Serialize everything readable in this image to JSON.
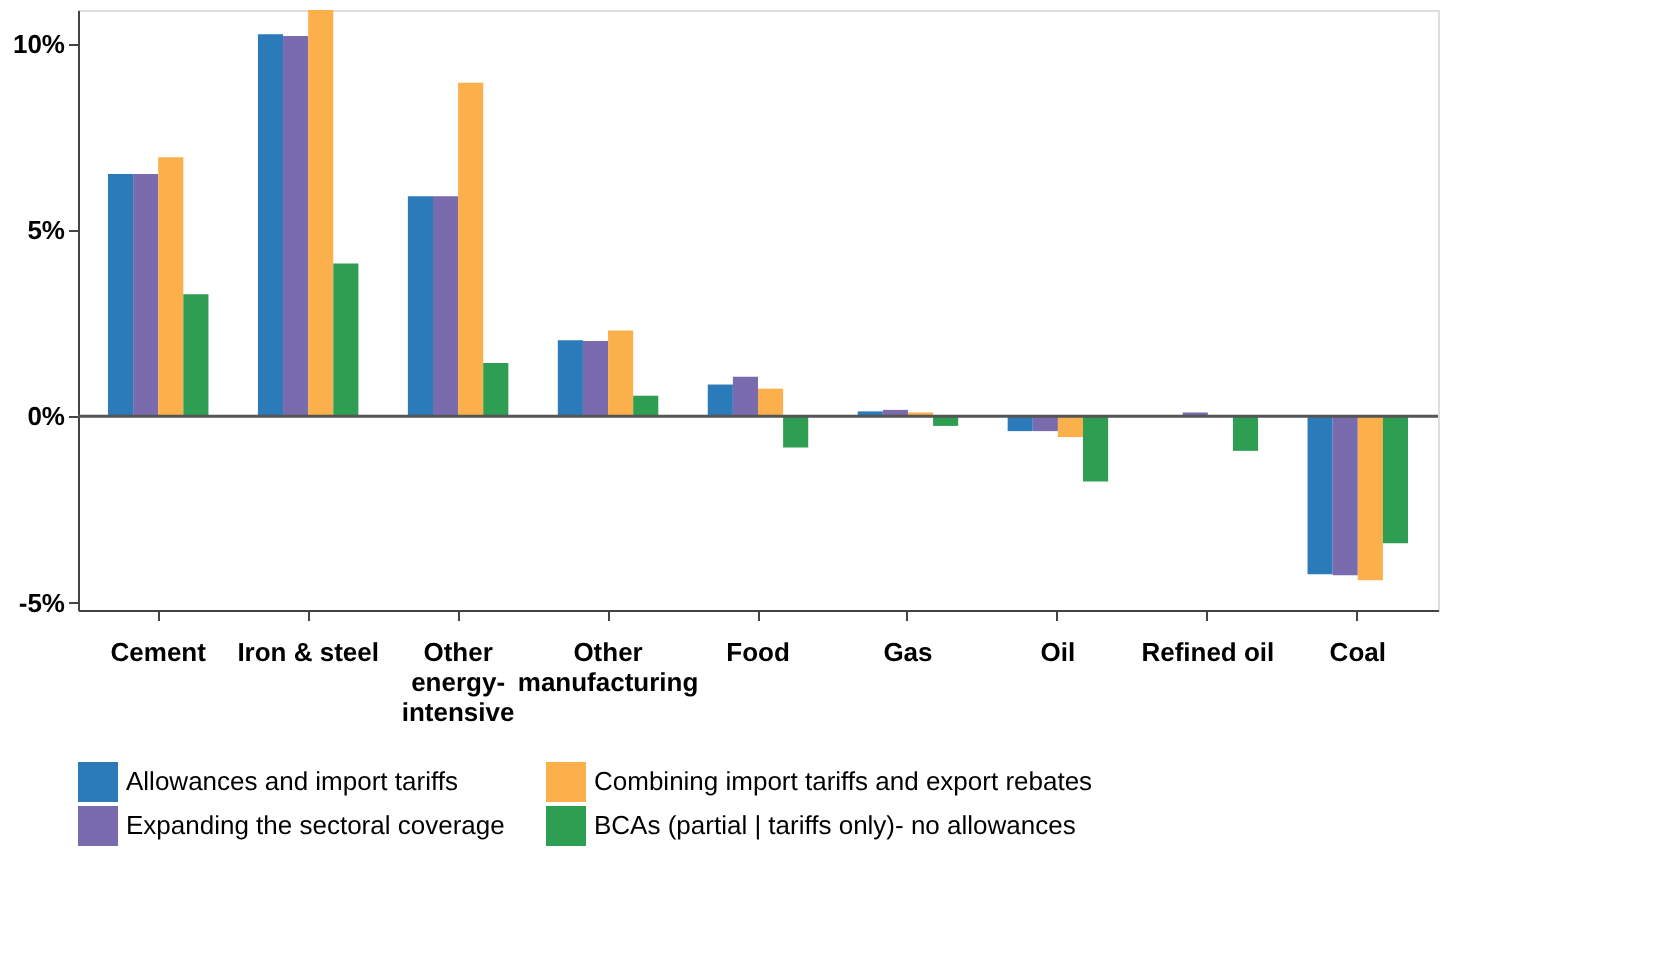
{
  "chart_data": {
    "type": "bar",
    "categories": [
      "Cement",
      "Iron & steel",
      "Other\nenergy-\nintensive",
      "Other\nmanufacturing",
      "Food",
      "Gas",
      "Oil",
      "Refined oil",
      "Coal"
    ],
    "series": [
      {
        "name": "Allowances and import tariffs",
        "color": "#2b7bba",
        "values": [
          6.5,
          10.25,
          5.9,
          2.04,
          0.85,
          0.13,
          -0.4,
          0.0,
          -4.24
        ]
      },
      {
        "name": "Expanding the sectoral coverage",
        "color": "#7a6aae",
        "values": [
          6.5,
          10.2,
          5.9,
          2.02,
          1.06,
          0.17,
          -0.4,
          0.1,
          -4.27
        ]
      },
      {
        "name": "Combining import tariffs and export rebates",
        "color": "#fbb04b",
        "values": [
          6.95,
          10.9,
          8.95,
          2.3,
          0.74,
          0.1,
          -0.56,
          null,
          -4.4
        ]
      },
      {
        "name": "BCAs (partial | tariffs only)- no allowances",
        "color": "#2e9e52",
        "values": [
          3.27,
          4.1,
          1.43,
          0.55,
          -0.84,
          -0.26,
          -1.75,
          -0.93,
          -3.41
        ]
      }
    ],
    "ylim": [
      -5.2,
      10.9
    ],
    "yticks": [
      {
        "value": -5,
        "label": "-5%"
      },
      {
        "value": 0,
        "label": "0%"
      },
      {
        "value": 5,
        "label": "5%"
      },
      {
        "value": 10,
        "label": "10%"
      }
    ],
    "ref_lines": [
      {
        "axis": "y",
        "value": 0,
        "color": "#555555"
      }
    ],
    "grid": false,
    "legend": "bottom"
  }
}
